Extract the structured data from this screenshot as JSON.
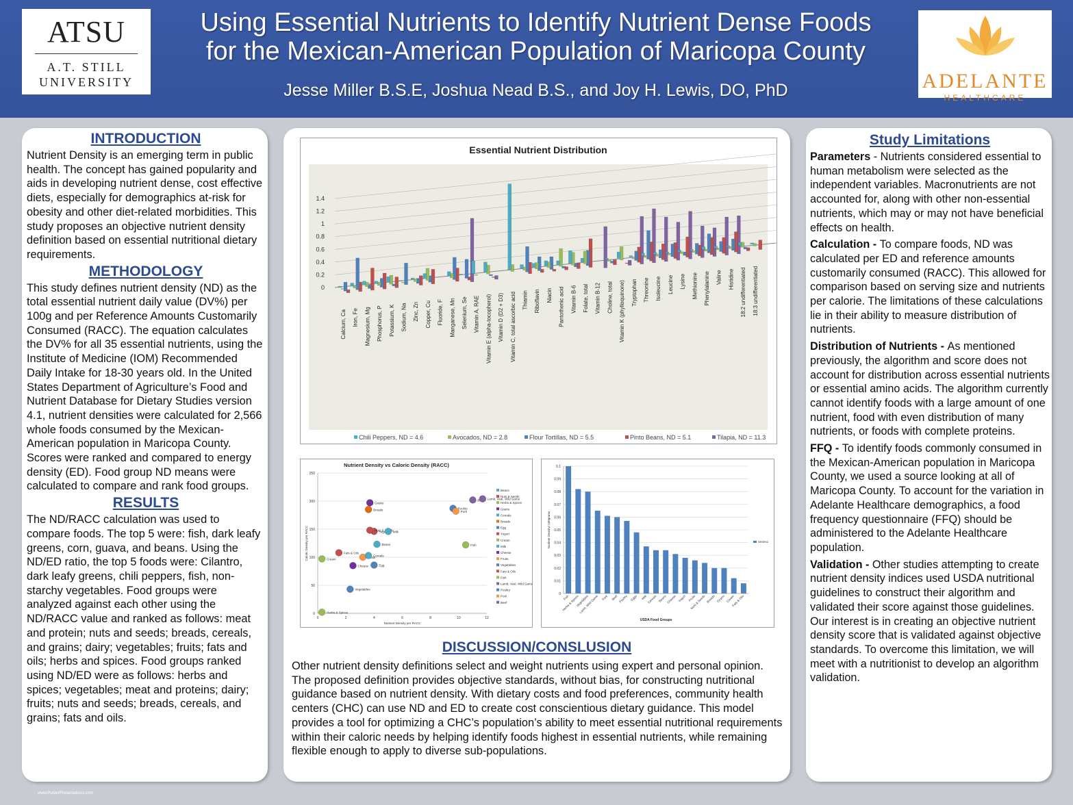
{
  "header": {
    "title_line1": "Using Essential Nutrients to Identify Nutrient Dense Foods",
    "title_line2": "for the Mexican-American Population of Maricopa County",
    "authors": "Jesse Miller B.S.E, Joshua Nead B.S., and Joy H. Lewis, DO, PhD",
    "left_logo": {
      "abbr": "ATSU",
      "line1": "A.T. Still",
      "line2": "University"
    },
    "right_logo": {
      "name": "ADELANTE",
      "sub": "HEALTHCARE",
      "color": "#e08a2c"
    }
  },
  "introduction": {
    "heading": "INTRODUCTION",
    "text": "Nutrient Density is an emerging term in public health.  The concept has gained popularity and aids in developing nutrient dense, cost effective diets, especially for demographics at-risk for obesity and other diet-related morbidities. This study proposes an objective nutrient density definition based on essential nutritional dietary requirements."
  },
  "methodology": {
    "heading": "METHODOLOGY",
    "text": "This study defines nutrient density (ND) as the total essential nutrient daily value (DV%) per 100g and per Reference Amounts Customarily Consumed (RACC). The equation calculates the DV% for all 35 essential nutrients, using the Institute of Medicine (IOM) Recommended Daily Intake for 18-30 years old. In the United States Department of Agriculture’s Food and Nutrient Database for Dietary Studies version 4.1, nutrient densities were calculated for 2,566 whole foods consumed by the Mexican-American population in Maricopa County. Scores were ranked and compared to energy density (ED). Food group ND means were calculated to compare and rank food groups."
  },
  "results": {
    "heading": "RESULTS",
    "text": "The ND/RACC calculation was used to compare foods. The top 5 were: fish, dark leafy greens, corn, guava, and beans. Using the ND/ED ratio, the top 5 foods were: Cilantro, dark leafy greens, chili peppers, fish, non-starchy vegetables. Food groups were analyzed against each other using the ND/RACC value and ranked as follows: meat and protein; nuts and seeds; breads, cereals, and grains; dairy; vegetables; fruits; fats and oils; herbs and spices. Food groups ranked using ND/ED were as follows: herbs and spices; vegetables; meat and proteins; dairy; fruits; nuts and seeds; breads, cereals, and grains; fats and oils."
  },
  "discussion": {
    "heading": "DISCUSSION/CONSLUSION",
    "text": "Other nutrient density definitions select and weight nutrients using expert and personal opinion. The proposed definition provides objective standards, without bias, for constructing nutritional guidance based on nutrient density.  With dietary costs and food preferences, community health centers (CHC) can use ND and ED to create cost conscientious dietary guidance. This model provides a tool for optimizing a CHC’s population’s ability to meet essential nutritional requirements within their caloric needs by helping identify foods highest in essential nutrients, while remaining flexible enough to apply to diverse sub-populations."
  },
  "limitations": {
    "heading": "Study Limitations",
    "items": [
      {
        "label": "Parameters",
        "text": " - Nutrients considered essential to human metabolism were selected as the independent variables. Macronutrients are not accounted for, along with other non-essential nutrients, which may or may not have beneficial effects on health."
      },
      {
        "label": "Calculation - ",
        "text": "To compare foods, ND was calculated per ED and reference amounts customarily consumed (RACC).  This allowed for comparison based on serving size and nutrients per calorie. The limitations of these calculations lie in their ability to measure distribution of nutrients."
      },
      {
        "label": "Distribution of Nutrients - ",
        "text": "As mentioned previously, the algorithm and score does not account for distribution across essential nutrients or essential amino acids. The algorithm currently cannot identify foods with a large amount of one nutrient, food with even distribution of many nutrients, or foods with complete proteins."
      },
      {
        "label": "FFQ - ",
        "text": "To identify foods commonly consumed in the Mexican-American population in Maricopa County, we used a source looking at all of Maricopa County.  To account for the variation in Adelante Healthcare demographics, a food frequency questionnaire (FFQ) should be administered to the Adelante Healthcare population."
      },
      {
        "label": "Validation - ",
        "text": "Other studies attempting to create nutrient density indices used USDA nutritional guidelines to construct their algorithm and validated their score against those guidelines. Our interest is in creating an objective nutrient density score that is validated against objective standards.  To overcome this limitation, we will meet with a nutritionist to develop an algorithm validation."
      }
    ]
  },
  "footer": "www.PosterPresentations.com",
  "chart_data": [
    {
      "type": "bar",
      "title": "Essential Nutrient Distribution",
      "ylim": [
        0,
        1.4
      ],
      "yticks": [
        "0",
        "0.2",
        "0.4",
        "0.6",
        "0.8",
        "1",
        "1.2",
        "1.4"
      ],
      "categories": [
        "Calcium, Ca",
        "Iron, Fe",
        "Magnesium, Mg",
        "Phosphorus, P",
        "Potassium, K",
        "Sodium, Na",
        "Zinc, Zn",
        "Copper, Cu",
        "Fluoride, F",
        "Manganese, Mn",
        "Selenium, Se",
        "Vitamin A, RAE",
        "Vitamin E (alpha-tocopherol)",
        "Vitamin D (D2 + D3)",
        "Vitamin C, total ascorbic acid",
        "Thiamin",
        "Riboflavin",
        "Niacin",
        "Pantothenic acid",
        "Vitamin B-6",
        "Folate, total",
        "Vitamin B-12",
        "Choline, total",
        "Vitamin K (phylloquinone)",
        "Tryptophan",
        "Threonine",
        "Isoleucine",
        "Leucine",
        "Lysine",
        "Methionine",
        "Phenylalanine",
        "Valine",
        "Histidine",
        "18:2 undifferentiated",
        "18:3 undifferentiated"
      ],
      "series": [
        {
          "name": "Chili Peppers, ND = 4.6",
          "color": "#4bacc6",
          "values": [
            0.02,
            0.05,
            0.06,
            0.04,
            0.09,
            0.01,
            0.03,
            0.08,
            0.0,
            0.07,
            0.01,
            0.2,
            0.16,
            0.0,
            1.35,
            0.06,
            0.06,
            0.08,
            0.06,
            0.2,
            0.06,
            0.0,
            0.02,
            0.1,
            0.02,
            0.04,
            0.03,
            0.02,
            0.03,
            0.02,
            0.04,
            0.03,
            0.02,
            0.05,
            0.02
          ]
        },
        {
          "name": "Avocados, ND = 2.8",
          "color": "#9bbb59",
          "values": [
            0.01,
            0.03,
            0.07,
            0.05,
            0.14,
            0.01,
            0.04,
            0.19,
            0.0,
            0.07,
            0.0,
            0.01,
            0.14,
            0.0,
            0.11,
            0.05,
            0.1,
            0.09,
            0.28,
            0.2,
            0.2,
            0.0,
            0.03,
            0.21,
            0.01,
            0.03,
            0.03,
            0.02,
            0.03,
            0.02,
            0.03,
            0.03,
            0.03,
            0.08,
            0.04
          ]
        },
        {
          "name": "Flour Tortillas, ND = 5.5",
          "color": "#4f81bd",
          "values": [
            0.14,
            0.5,
            0.06,
            0.14,
            0.03,
            0.34,
            0.08,
            0.1,
            0.0,
            0.35,
            0.3,
            0.0,
            0.02,
            0.0,
            0.0,
            0.4,
            0.22,
            0.2,
            0.03,
            0.05,
            0.24,
            0.0,
            0.03,
            0.0,
            0.15,
            0.45,
            0.13,
            0.2,
            0.05,
            0.17,
            0.3,
            0.16,
            0.18,
            0.03,
            0.0
          ]
        },
        {
          "name": "Pinto Beans, ND = 5.1",
          "color": "#c0504d",
          "values": [
            0.05,
            0.15,
            0.35,
            0.25,
            0.17,
            0.0,
            0.15,
            0.23,
            0.0,
            0.21,
            0.05,
            0.0,
            0.01,
            0.0,
            0.0,
            0.18,
            0.05,
            0.03,
            0.05,
            0.09,
            0.45,
            0.0,
            0.08,
            0.01,
            0.24,
            0.3,
            0.25,
            0.25,
            0.32,
            0.17,
            0.27,
            0.25,
            0.32,
            0.05,
            0.15
          ]
        },
        {
          "name": "Tilapia, ND = 11.3",
          "color": "#8064a2",
          "values": [
            0.0,
            0.0,
            0.0,
            0.0,
            0.0,
            0.0,
            0.0,
            0.0,
            0.0,
            0.0,
            1.0,
            0.0,
            0.06,
            0.0,
            0.0,
            0.0,
            0.0,
            0.0,
            0.0,
            0.0,
            0.0,
            0.65,
            0.0,
            0.08,
            0.75,
            0.85,
            0.7,
            0.6,
            0.75,
            0.5,
            0.45,
            0.6,
            0.6,
            0.0,
            0.0
          ]
        }
      ]
    },
    {
      "type": "scatter",
      "title": "Nutrient Density vs Caloric Density (RACC)",
      "xlabel": "Nutrient Density per RACC",
      "ylabel": "Caloric Density per RACC",
      "xlim": [
        0,
        12
      ],
      "ylim": [
        0,
        250
      ],
      "xticks": [
        "0",
        "2",
        "4",
        "6",
        "8",
        "10",
        "12"
      ],
      "yticks": [
        "0",
        "50",
        "100",
        "150",
        "200",
        "250"
      ],
      "points": [
        {
          "name": "Grains",
          "x": 3.7,
          "y": 197,
          "color": "#7030a0"
        },
        {
          "name": "Breads",
          "x": 3.6,
          "y": 185,
          "color": "#e46c0a"
        },
        {
          "name": "Poultry",
          "x": 9.6,
          "y": 187,
          "color": "#4f81bd"
        },
        {
          "name": "Pork",
          "x": 9.8,
          "y": 182,
          "color": "#f79646"
        },
        {
          "name": "Beef",
          "x": 11.0,
          "y": 202,
          "color": "#8064a2"
        },
        {
          "name": "Lamb, Veal, Wild Game",
          "x": 11.7,
          "y": 204,
          "color": "#8064a2"
        },
        {
          "name": "Yogurt",
          "x": 4.0,
          "y": 146,
          "color": "#c0504d"
        },
        {
          "name": "Nuts & Seeds",
          "x": 3.7,
          "y": 148,
          "color": "#c0504d"
        },
        {
          "name": "Milk",
          "x": 5.0,
          "y": 146,
          "color": "#4bacc6"
        },
        {
          "name": "Fish",
          "x": 10.5,
          "y": 122,
          "color": "#9bbb59"
        },
        {
          "name": "Fats & Oils",
          "x": 1.5,
          "y": 108,
          "color": "#c0504d"
        },
        {
          "name": "Fruits",
          "x": 3.2,
          "y": 100,
          "color": "#f79646"
        },
        {
          "name": "Beans",
          "x": 4.2,
          "y": 123,
          "color": "#4bacc6"
        },
        {
          "name": "Cereals",
          "x": 3.6,
          "y": 103,
          "color": "#4bacc6"
        },
        {
          "name": "Cream",
          "x": 0.3,
          "y": 97,
          "color": "#9bbb59"
        },
        {
          "name": "Cheese",
          "x": 2.5,
          "y": 85,
          "color": "#7030a0"
        },
        {
          "name": "Egg",
          "x": 4.0,
          "y": 86,
          "color": "#4f81bd"
        },
        {
          "name": "Vegetables",
          "x": 2.3,
          "y": 43,
          "color": "#4f81bd"
        },
        {
          "name": "Herbs & Spices",
          "x": 0.3,
          "y": 2,
          "color": "#9bbb59"
        }
      ],
      "legend": [
        "Beans",
        "Nuts & Seeds",
        "Herbs & Spices",
        "Grains",
        "Cereals",
        "Breads",
        "Egg",
        "Yogurt",
        "Cream",
        "Milk",
        "Cheese",
        "Fruits",
        "Vegetables",
        "Fats & Oils",
        "Fish",
        "Lamb, Veal, Wild Game",
        "Poultry",
        "Pork",
        "Beef"
      ]
    },
    {
      "type": "bar",
      "xlabel": "USDA Food Groups",
      "ylabel": "Nutrient Density/ 100grams",
      "ylim": [
        0,
        0.1
      ],
      "yticks": [
        "0",
        "0.01",
        "0.02",
        "0.03",
        "0.04",
        "0.05",
        "0.06",
        "0.07",
        "0.08",
        "0.09",
        "0.1"
      ],
      "categories": [
        "Fish",
        "Herbs & Spices",
        "Vegetables",
        "Lamb, Wild Game",
        "Pork",
        "Beef",
        "Poultry",
        "Eggs",
        "Milk",
        "Cereals",
        "Beans",
        "Cheese",
        "Yogurt",
        "Fruits",
        "Nuts & Seeds",
        "Breads",
        "Grains",
        "Cream",
        "Fats & Oils"
      ],
      "series": [
        {
          "name": "Series1",
          "color": "#4f81bd",
          "values": [
            0.1,
            0.082,
            0.08,
            0.065,
            0.061,
            0.06,
            0.057,
            0.048,
            0.037,
            0.034,
            0.034,
            0.031,
            0.028,
            0.026,
            0.024,
            0.02,
            0.02,
            0.012,
            0.008
          ]
        }
      ]
    }
  ]
}
